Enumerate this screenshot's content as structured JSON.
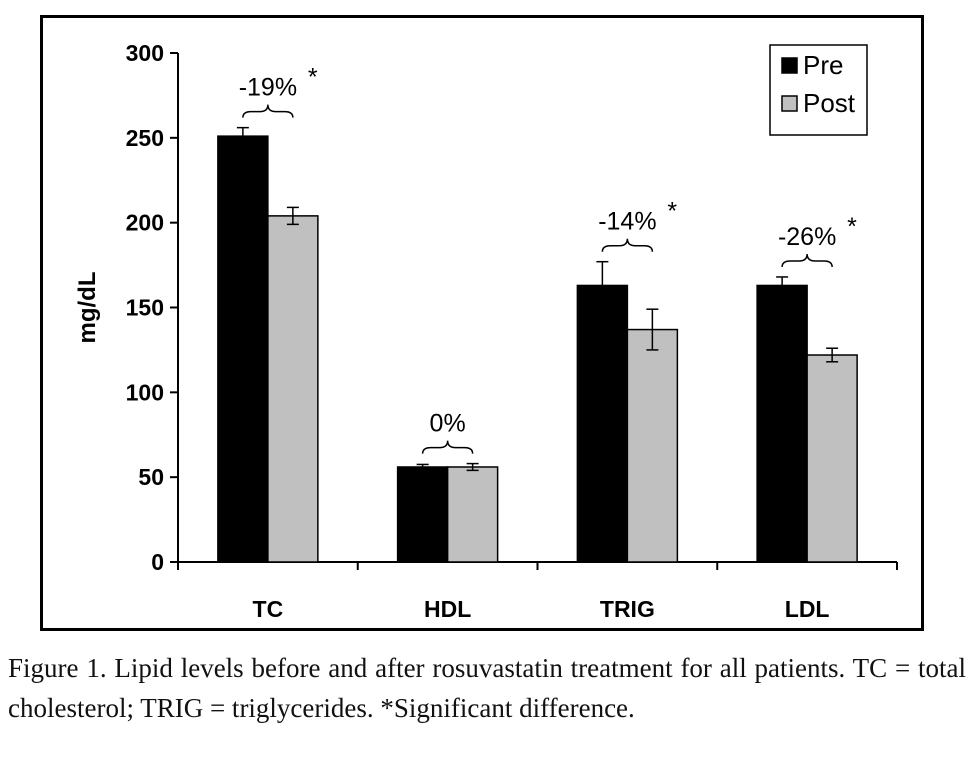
{
  "chart_data": {
    "type": "bar",
    "ylabel": "mg/dL",
    "xlabel": "",
    "ylim": [
      0,
      300
    ],
    "yticks": [
      0,
      50,
      100,
      150,
      200,
      250,
      300
    ],
    "categories": [
      "TC",
      "HDL",
      "TRIG",
      "LDL"
    ],
    "series": [
      {
        "name": "Pre",
        "color": "#000000",
        "values": [
          251,
          56,
          163,
          163
        ],
        "errors": [
          5,
          1.5,
          14,
          5
        ]
      },
      {
        "name": "Post",
        "color": "#c0c0c0",
        "values": [
          204,
          56,
          137,
          122
        ],
        "errors": [
          5,
          2,
          12,
          4
        ]
      }
    ],
    "annotations": [
      {
        "category": "TC",
        "text": "-19%",
        "marker": "*"
      },
      {
        "category": "HDL",
        "text": "0%",
        "marker": ""
      },
      {
        "category": "TRIG",
        "text": "-14%",
        "marker": "*"
      },
      {
        "category": "LDL",
        "text": "-26%",
        "marker": "*"
      }
    ],
    "legend_position": "top-right",
    "grid": false
  },
  "caption": "Figure 1. Lipid levels before and after rosuvastatin treatment for all patients. TC = total cholesterol; TRIG = triglycerides. *Significant difference."
}
